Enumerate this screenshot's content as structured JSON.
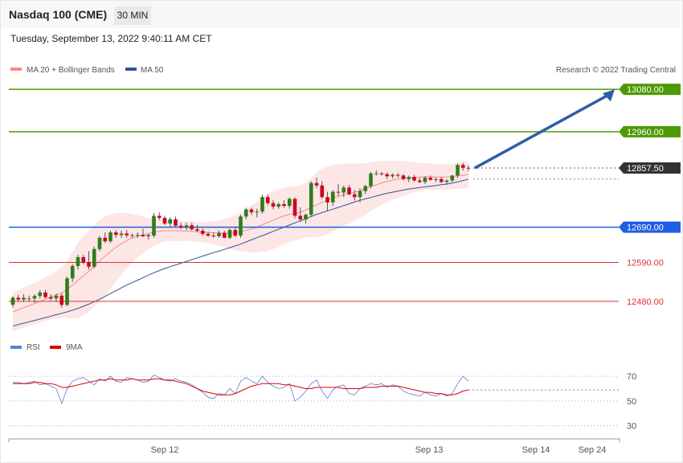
{
  "header": {
    "symbol": "Nasdaq 100 (CME)",
    "timeframe": "30 MIN"
  },
  "datetime": "Tuesday, September 13, 2022 9:40:11 AM CET",
  "legend": {
    "ma20_label": "MA 20 + Bollinger Bands",
    "ma20_color": "#f48b8b",
    "ma50_label": "MA 50",
    "ma50_color": "#2f5597",
    "copyright": "Research © 2022 Trading Central"
  },
  "rsi_legend": {
    "rsi_label": "RSI",
    "rsi_color": "#5b7fd6",
    "ma9_label": "9MA",
    "ma9_color": "#e00000"
  },
  "chart_data": {
    "type": "candlestick",
    "timeframe": "30 MIN",
    "x_ticks": [
      "Sep 12",
      "Sep 13",
      "Sep 14",
      "Sep 24"
    ],
    "price_ylim": [
      12400,
      13110
    ],
    "levels": [
      {
        "value": 13080.0,
        "label": "13080.00",
        "color": "#4e9a06",
        "kind": "resistance",
        "badge": true
      },
      {
        "value": 12960.0,
        "label": "12960.00",
        "color": "#4e9a06",
        "kind": "resistance",
        "badge": true
      },
      {
        "value": 12857.5,
        "label": "12857.50",
        "color": "#333333",
        "kind": "last",
        "badge": true
      },
      {
        "value": 12690.0,
        "label": "12690.00",
        "color": "#1f5fe0",
        "kind": "pivot",
        "badge": true
      },
      {
        "value": 12590.0,
        "label": "12590.00",
        "color": "#e03030",
        "kind": "support",
        "badge": false
      },
      {
        "value": 12480.0,
        "label": "12480.00",
        "color": "#e03030",
        "kind": "support",
        "badge": false
      }
    ],
    "candles": [
      [
        12470,
        12495,
        12462,
        12490
      ],
      [
        12490,
        12498,
        12480,
        12485
      ],
      [
        12485,
        12500,
        12478,
        12490
      ],
      [
        12488,
        12496,
        12480,
        12488
      ],
      [
        12488,
        12500,
        12476,
        12495
      ],
      [
        12495,
        12512,
        12488,
        12505
      ],
      [
        12505,
        12512,
        12488,
        12492
      ],
      [
        12492,
        12500,
        12482,
        12488
      ],
      [
        12488,
        12502,
        12478,
        12496
      ],
      [
        12496,
        12502,
        12462,
        12470
      ],
      [
        12470,
        12550,
        12466,
        12545
      ],
      [
        12545,
        12585,
        12535,
        12580
      ],
      [
        12580,
        12612,
        12570,
        12605
      ],
      [
        12605,
        12612,
        12585,
        12590
      ],
      [
        12590,
        12622,
        12570,
        12578
      ],
      [
        12578,
        12635,
        12574,
        12628
      ],
      [
        12628,
        12665,
        12622,
        12660
      ],
      [
        12660,
        12675,
        12645,
        12650
      ],
      [
        12650,
        12680,
        12645,
        12675
      ],
      [
        12675,
        12682,
        12660,
        12668
      ],
      [
        12668,
        12680,
        12660,
        12672
      ],
      [
        12672,
        12682,
        12660,
        12667
      ],
      [
        12667,
        12672,
        12660,
        12667
      ],
      [
        12667,
        12675,
        12660,
        12668
      ],
      [
        12668,
        12686,
        12662,
        12664
      ],
      [
        12664,
        12670,
        12655,
        12668
      ],
      [
        12666,
        12730,
        12660,
        12722
      ],
      [
        12722,
        12732,
        12710,
        12716
      ],
      [
        12716,
        12722,
        12696,
        12700
      ],
      [
        12700,
        12718,
        12690,
        12712
      ],
      [
        12712,
        12720,
        12690,
        12694
      ],
      [
        12694,
        12702,
        12684,
        12690
      ],
      [
        12690,
        12702,
        12682,
        12695
      ],
      [
        12695,
        12702,
        12680,
        12684
      ],
      [
        12684,
        12696,
        12675,
        12680
      ],
      [
        12680,
        12686,
        12666,
        12671
      ],
      [
        12671,
        12678,
        12662,
        12666
      ],
      [
        12666,
        12676,
        12660,
        12664
      ],
      [
        12664,
        12680,
        12660,
        12674
      ],
      [
        12674,
        12680,
        12658,
        12660
      ],
      [
        12660,
        12686,
        12656,
        12682
      ],
      [
        12682,
        12690,
        12662,
        12666
      ],
      [
        12666,
        12725,
        12660,
        12720
      ],
      [
        12720,
        12745,
        12712,
        12740
      ],
      [
        12740,
        12745,
        12724,
        12732
      ],
      [
        12732,
        12742,
        12718,
        12734
      ],
      [
        12734,
        12782,
        12728,
        12775
      ],
      [
        12775,
        12782,
        12752,
        12758
      ],
      [
        12758,
        12766,
        12740,
        12748
      ],
      [
        12748,
        12760,
        12742,
        12755
      ],
      [
        12755,
        12766,
        12745,
        12750
      ],
      [
        12750,
        12774,
        12742,
        12770
      ],
      [
        12770,
        12775,
        12715,
        12722
      ],
      [
        12722,
        12746,
        12705,
        12712
      ],
      [
        12712,
        12728,
        12700,
        12725
      ],
      [
        12725,
        12820,
        12720,
        12815
      ],
      [
        12815,
        12830,
        12800,
        12808
      ],
      [
        12808,
        12820,
        12770,
        12775
      ],
      [
        12775,
        12790,
        12735,
        12760
      ],
      [
        12760,
        12795,
        12750,
        12790
      ],
      [
        12790,
        12812,
        12778,
        12788
      ],
      [
        12788,
        12808,
        12775,
        12802
      ],
      [
        12802,
        12810,
        12780,
        12783
      ],
      [
        12783,
        12795,
        12765,
        12775
      ],
      [
        12775,
        12800,
        12760,
        12792
      ],
      [
        12792,
        12810,
        12784,
        12806
      ],
      [
        12806,
        12846,
        12800,
        12842
      ],
      [
        12842,
        12850,
        12836,
        12842
      ],
      [
        12842,
        12846,
        12836,
        12840
      ],
      [
        12840,
        12845,
        12826,
        12834
      ],
      [
        12834,
        12842,
        12828,
        12838
      ],
      [
        12838,
        12843,
        12830,
        12836
      ],
      [
        12836,
        12840,
        12822,
        12826
      ],
      [
        12826,
        12836,
        12818,
        12832
      ],
      [
        12832,
        12838,
        12818,
        12822
      ],
      [
        12822,
        12830,
        12814,
        12818
      ],
      [
        12818,
        12834,
        12812,
        12830
      ],
      [
        12830,
        12836,
        12822,
        12824
      ],
      [
        12824,
        12830,
        12818,
        12826
      ],
      [
        12826,
        12832,
        12814,
        12818
      ],
      [
        12818,
        12825,
        12810,
        12822
      ],
      [
        12822,
        12838,
        12818,
        12836
      ],
      [
        12836,
        12870,
        12830,
        12866
      ],
      [
        12866,
        12872,
        12850,
        12858
      ],
      [
        12858,
        12865,
        12848,
        12857.5
      ]
    ],
    "ma20": [
      12450,
      12456,
      12462,
      12468,
      12474,
      12480,
      12486,
      12492,
      12498,
      12504,
      12514,
      12526,
      12539,
      12552,
      12565,
      12579,
      12594,
      12608,
      12621,
      12633,
      12643,
      12652,
      12659,
      12664,
      12668,
      12672,
      12676,
      12678,
      12680,
      12680,
      12680,
      12679,
      12679,
      12678,
      12677,
      12676,
      12675,
      12674,
      12673,
      12673,
      12673,
      12674,
      12677,
      12681,
      12685,
      12690,
      12697,
      12703,
      12710,
      12716,
      12722,
      12726,
      12729,
      12732,
      12738,
      12746,
      12753,
      12760,
      12766,
      12772,
      12777,
      12782,
      12785,
      12789,
      12793,
      12798,
      12805,
      12810,
      12815,
      12819,
      12823,
      12826,
      12828,
      12830,
      12831,
      12832,
      12833,
      12833,
      12832,
      12832,
      12832,
      12833,
      12835,
      12837,
      12839
    ],
    "bb_upper": [
      12505,
      12512,
      12519,
      12526,
      12533,
      12540,
      12548,
      12556,
      12565,
      12575,
      12595,
      12620,
      12645,
      12665,
      12680,
      12695,
      12710,
      12720,
      12726,
      12730,
      12731,
      12730,
      12728,
      12724,
      12720,
      12716,
      12714,
      12712,
      12711,
      12710,
      12709,
      12708,
      12707,
      12706,
      12705,
      12704,
      12705,
      12707,
      12710,
      12713,
      12718,
      12724,
      12732,
      12742,
      12752,
      12762,
      12774,
      12784,
      12792,
      12798,
      12802,
      12804,
      12806,
      12808,
      12815,
      12830,
      12845,
      12855,
      12862,
      12866,
      12869,
      12870,
      12870,
      12870,
      12870,
      12871,
      12874,
      12876,
      12877,
      12878,
      12878,
      12878,
      12877,
      12876,
      12874,
      12872,
      12871,
      12870,
      12869,
      12868,
      12868,
      12869,
      12872,
      12875,
      12878
    ],
    "bb_lower": [
      12395,
      12400,
      12405,
      12410,
      12415,
      12420,
      12424,
      12428,
      12431,
      12433,
      12433,
      12432,
      12433,
      12440,
      12450,
      12463,
      12478,
      12496,
      12516,
      12536,
      12555,
      12574,
      12590,
      12604,
      12616,
      12628,
      12638,
      12644,
      12649,
      12650,
      12651,
      12650,
      12651,
      12650,
      12649,
      12648,
      12645,
      12641,
      12636,
      12633,
      12628,
      12624,
      12622,
      12620,
      12618,
      12618,
      12620,
      12622,
      12628,
      12634,
      12642,
      12648,
      12652,
      12656,
      12661,
      12662,
      12661,
      12665,
      12670,
      12678,
      12685,
      12694,
      12700,
      12708,
      12716,
      12725,
      12736,
      12744,
      12753,
      12760,
      12768,
      12774,
      12779,
      12784,
      12788,
      12792,
      12795,
      12796,
      12795,
      12796,
      12796,
      12797,
      12798,
      12799,
      12800
    ],
    "ma50": [
      12410,
      12414,
      12418,
      12422,
      12426,
      12430,
      12434,
      12438,
      12442,
      12446,
      12450,
      12455,
      12460,
      12466,
      12472,
      12479,
      12486,
      12494,
      12502,
      12510,
      12518,
      12526,
      12533,
      12540,
      12547,
      12554,
      12561,
      12567,
      12573,
      12578,
      12583,
      12588,
      12593,
      12598,
      12603,
      12608,
      12613,
      12618,
      12622,
      12627,
      12632,
      12637,
      12642,
      12648,
      12654,
      12660,
      12666,
      12672,
      12678,
      12684,
      12690,
      12696,
      12702,
      12708,
      12714,
      12720,
      12726,
      12731,
      12736,
      12741,
      12746,
      12751,
      12756,
      12761,
      12766,
      12770,
      12774,
      12778,
      12782,
      12786,
      12789,
      12792,
      12795,
      12798,
      12800,
      12802,
      12804,
      12806,
      12808,
      12810,
      12812,
      12815,
      12818,
      12822,
      12826
    ],
    "rsi_ylim": [
      20,
      85
    ],
    "rsi_ticks": [
      70,
      50,
      30
    ],
    "rsi_level_line": 59,
    "rsi": [
      65,
      65,
      64,
      65,
      66,
      63,
      64,
      62,
      60,
      48,
      60,
      66,
      68,
      69,
      66,
      63,
      68,
      66,
      70,
      66,
      65,
      69,
      68,
      67,
      65,
      66,
      71,
      69,
      67,
      66,
      68,
      66,
      65,
      63,
      60,
      57,
      53,
      52,
      56,
      55,
      60,
      56,
      66,
      69,
      66,
      64,
      70,
      65,
      62,
      60,
      61,
      64,
      50,
      53,
      58,
      64,
      67,
      58,
      52,
      59,
      62,
      63,
      56,
      55,
      60,
      62,
      64,
      63,
      64,
      61,
      63,
      62,
      58,
      56,
      55,
      54,
      57,
      55,
      54,
      56,
      54,
      56,
      64,
      70,
      66
    ],
    "rsi_ma9": [
      64,
      64,
      64,
      64,
      65,
      65,
      64,
      64,
      63,
      61,
      61,
      62,
      63,
      64,
      65,
      66,
      67,
      67,
      68,
      67,
      67,
      67,
      68,
      67,
      67,
      67,
      68,
      68,
      67,
      67,
      66,
      65,
      64,
      62,
      60,
      58,
      57,
      56,
      55,
      55,
      55,
      56,
      58,
      60,
      62,
      63,
      64,
      64,
      64,
      64,
      63,
      63,
      62,
      61,
      60,
      60,
      61,
      61,
      61,
      61,
      61,
      60,
      60,
      60,
      60,
      61,
      61,
      61,
      62,
      62,
      62,
      62,
      61,
      60,
      59,
      58,
      57,
      57,
      56,
      56,
      55,
      55,
      56,
      58,
      59
    ]
  }
}
